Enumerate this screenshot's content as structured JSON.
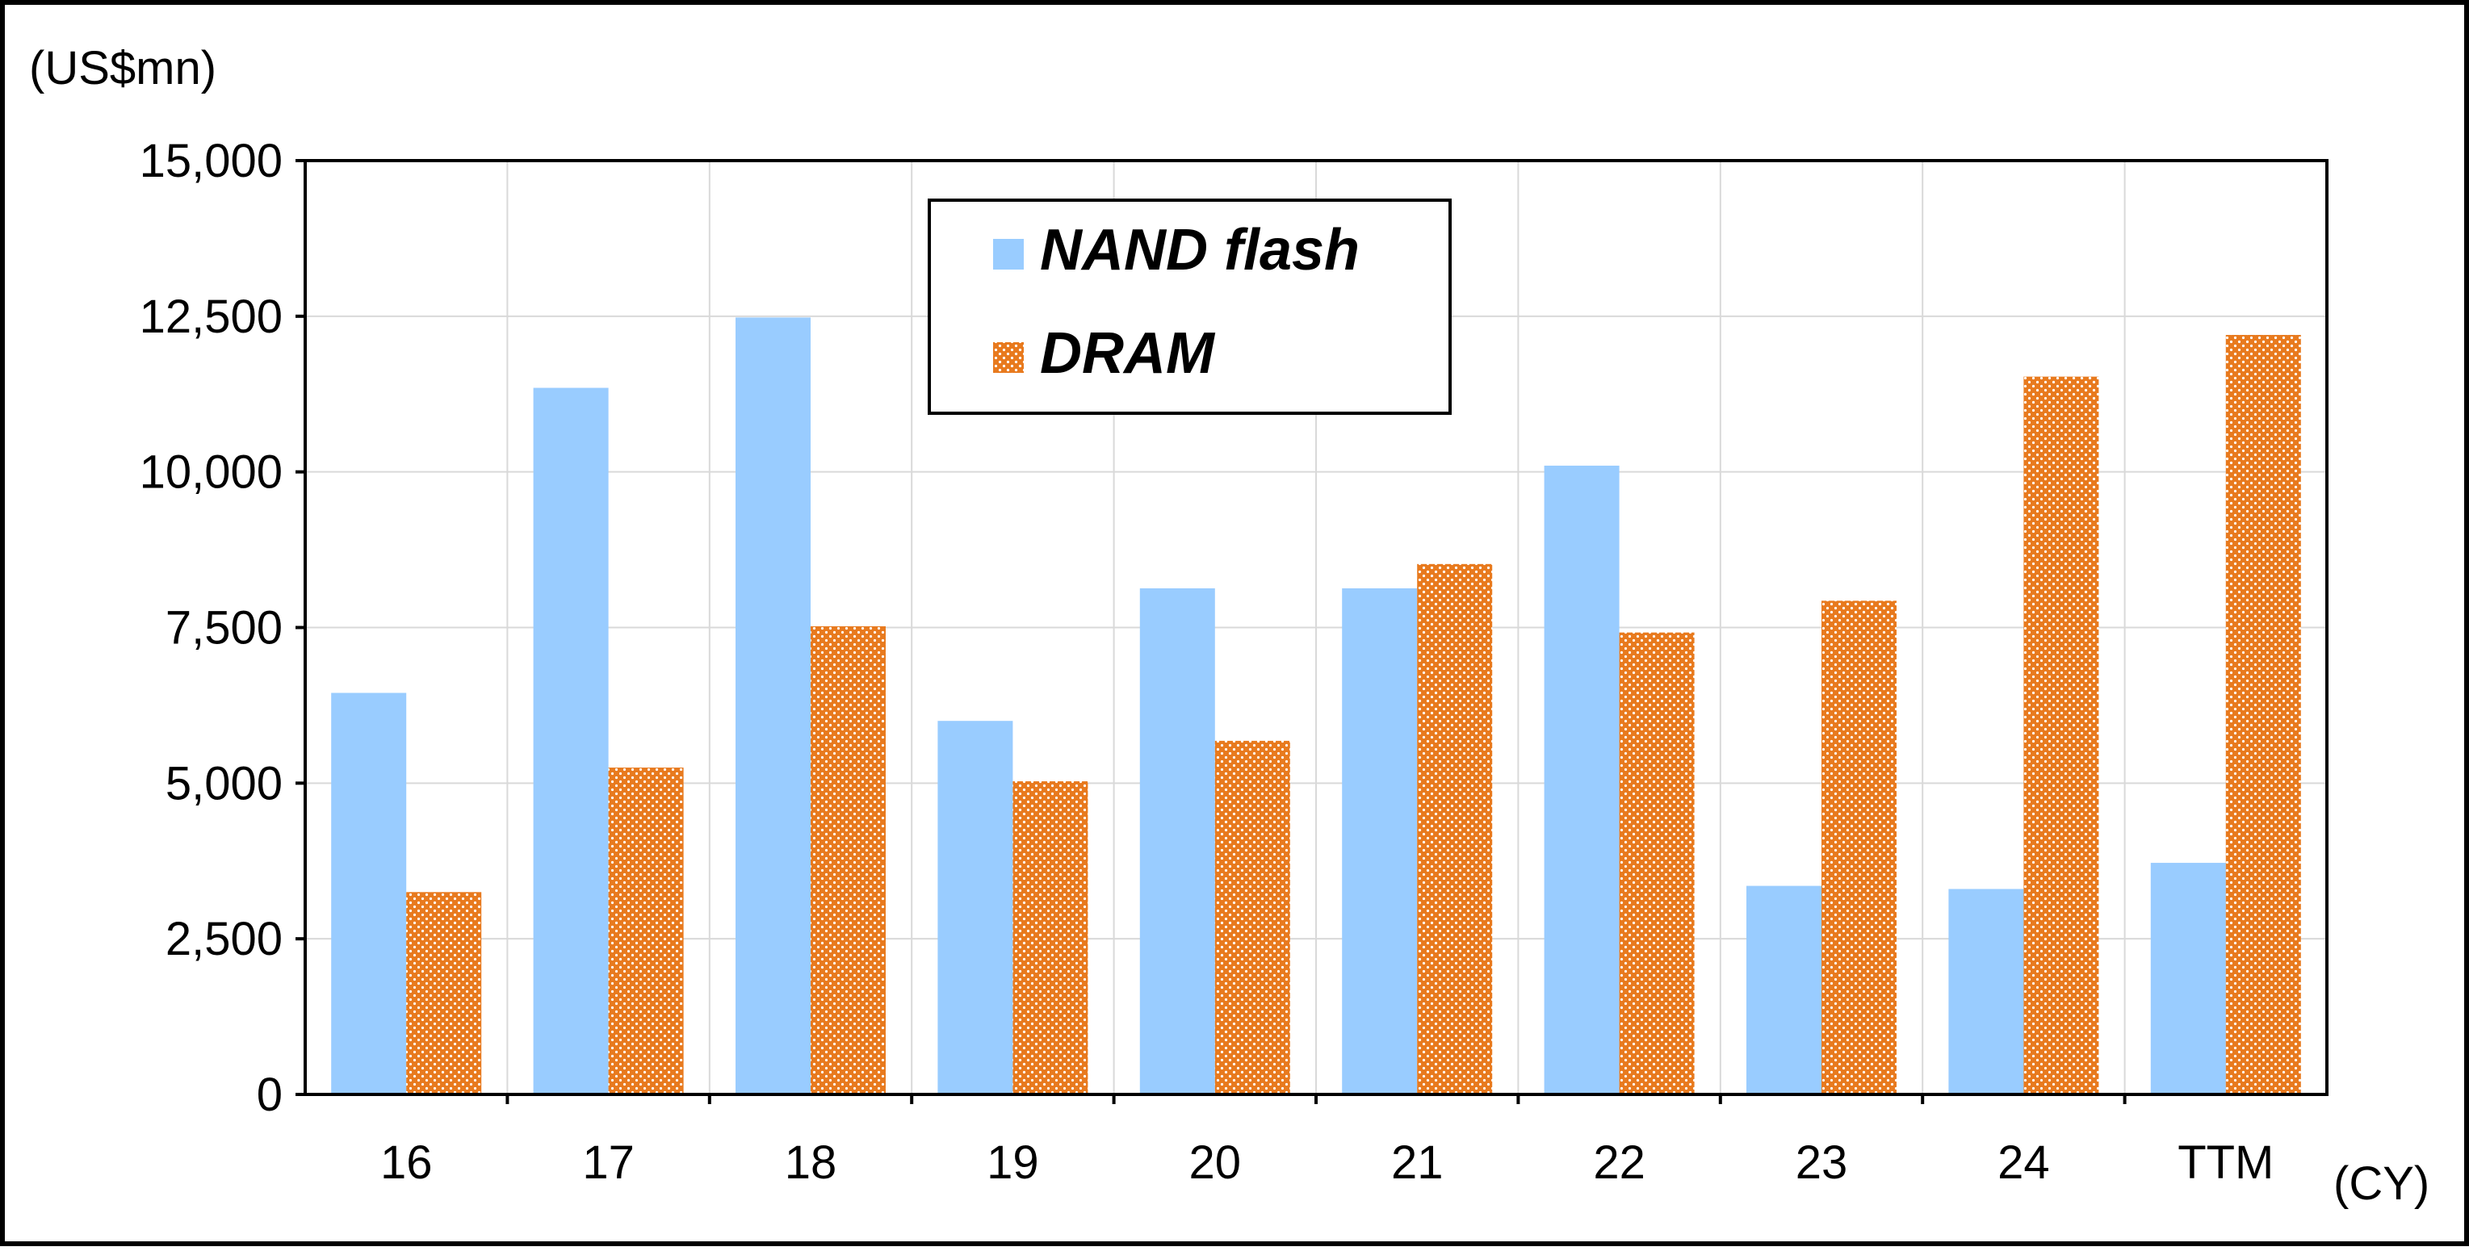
{
  "chart_data": {
    "type": "bar",
    "title": "",
    "y_unit_label": "(US$mn)",
    "x_unit_label": "(CY)",
    "categories": [
      "16",
      "17",
      "18",
      "19",
      "20",
      "21",
      "22",
      "23",
      "24",
      "TTM"
    ],
    "series": [
      {
        "name": "NAND flash",
        "color": "#99ccff",
        "pattern": "solid",
        "values": [
          6450,
          11350,
          12480,
          6000,
          8130,
          8130,
          10100,
          3350,
          3300,
          3720
        ]
      },
      {
        "name": "DRAM",
        "color": "#e87a1e",
        "pattern": "dotted",
        "values": [
          3250,
          5250,
          7520,
          5030,
          5680,
          8520,
          7420,
          7930,
          11530,
          12200
        ]
      }
    ],
    "ylim": [
      0,
      15000
    ],
    "y_ticks": [
      "0",
      "2,500",
      "5,000",
      "7,500",
      "10,000",
      "12,500",
      "15,000"
    ],
    "y_tick_values": [
      0,
      2500,
      5000,
      7500,
      10000,
      12500,
      15000
    ],
    "grid": true,
    "legend_position": "top-center"
  }
}
